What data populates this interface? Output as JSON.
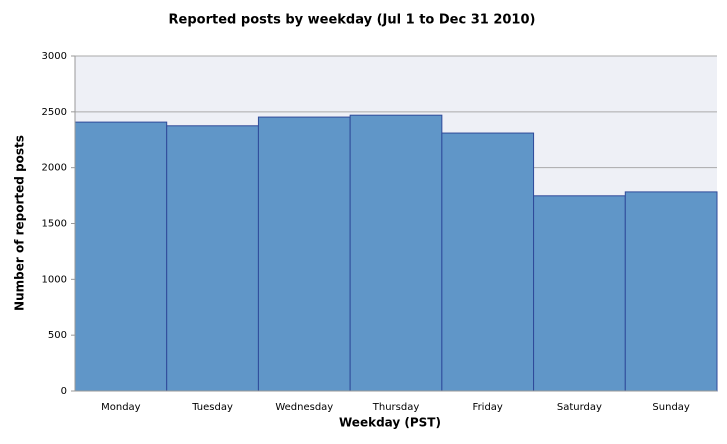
{
  "chart_data": {
    "type": "bar",
    "title": "Reported posts by weekday (Jul 1 to Dec 31 2010)",
    "x_label": "Weekday (PST)",
    "y_label": "Number of reported posts",
    "categories": [
      "Monday",
      "Tuesday",
      "Wednesday",
      "Thursday",
      "Friday",
      "Saturday",
      "Sunday"
    ],
    "values": [
      2408,
      2375,
      2453,
      2470,
      2310,
      1748,
      1783
    ],
    "color": "#6096c8",
    "ylim": [
      0,
      3000
    ],
    "yticks": [
      0,
      500,
      1000,
      1500,
      2000,
      2500,
      3000
    ],
    "grid": true
  }
}
